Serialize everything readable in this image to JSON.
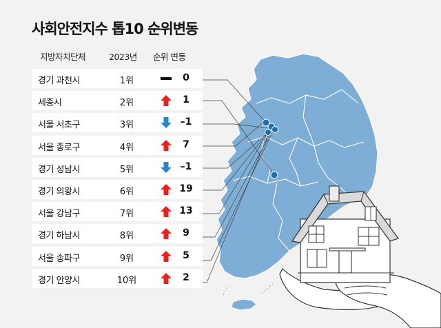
{
  "title": "사회안전지수 톱10 순위변동",
  "headers": {
    "region": "지방자치단체",
    "year": "2023년",
    "change": "순위 변동"
  },
  "colors": {
    "up": "#e8231f",
    "down": "#2a86c6",
    "same": "#111111",
    "map_fill": "#7eaed6",
    "map_stroke": "#ffffff",
    "row_bg": "#ffffff",
    "bg": "#f2f2f2"
  },
  "rows": [
    {
      "region": "경기 과천시",
      "rank": "1위",
      "direction": "same",
      "icon": "dash-icon",
      "change": "0"
    },
    {
      "region": "세종시",
      "rank": "2위",
      "direction": "up",
      "icon": "up-arrow-icon",
      "change": "1"
    },
    {
      "region": "서울 서초구",
      "rank": "3위",
      "direction": "down",
      "icon": "down-arrow-icon",
      "change": "–1"
    },
    {
      "region": "서울 종로구",
      "rank": "4위",
      "direction": "up",
      "icon": "up-arrow-icon",
      "change": "7"
    },
    {
      "region": "경기 성남시",
      "rank": "5위",
      "direction": "down",
      "icon": "down-arrow-icon",
      "change": "–1"
    },
    {
      "region": "경기 의왕시",
      "rank": "6위",
      "direction": "up",
      "icon": "up-arrow-icon",
      "change": "19"
    },
    {
      "region": "서울 강남구",
      "rank": "7위",
      "direction": "up",
      "icon": "up-arrow-icon",
      "change": "13"
    },
    {
      "region": "경기 하남시",
      "rank": "8위",
      "direction": "up",
      "icon": "up-arrow-icon",
      "change": "9"
    },
    {
      "region": "서울 송파구",
      "rank": "9위",
      "direction": "up",
      "icon": "up-arrow-icon",
      "change": "5"
    },
    {
      "region": "경기 안양시",
      "rank": "10위",
      "direction": "up",
      "icon": "up-arrow-icon",
      "change": "2"
    }
  ]
}
